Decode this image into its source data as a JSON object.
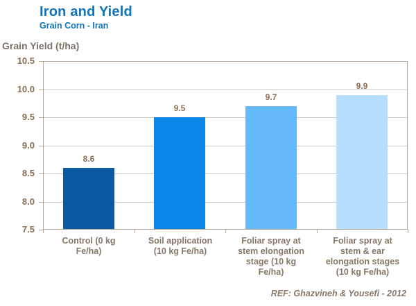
{
  "header": {
    "title": "Iron and Yield",
    "subtitle": "Grain Corn - Iran"
  },
  "footer": {
    "reference": "REF: Ghazvineh & Yousefi - 2012"
  },
  "colors": {
    "title_blue": "#1173BA",
    "axis_border": "#B3A79B",
    "gridline": "#CDC8C2",
    "y_label_brown": "#8B6E52",
    "x_label_gray_brown": "#867868",
    "axis_title_gray": "#7A7265",
    "reference_text": "#877769"
  },
  "chart_data": {
    "type": "bar",
    "title": "Iron and Yield",
    "subtitle": "Grain Corn - Iran",
    "ylabel": "Grain Yield (t/ha)",
    "xlabel": "",
    "ylim": [
      7.5,
      10.5
    ],
    "ytick_step": 0.5,
    "ytick_labels": [
      "10.5",
      "10.0",
      "9.5",
      "9.0",
      "8.5",
      "8.0",
      "7.5"
    ],
    "grid": true,
    "legend": false,
    "categories": [
      "Control (0 kg Fe/ha)",
      "Soil application (10 kg Fe/ha)",
      "Foliar spray at stem elongation stage (10 kg Fe/ha)",
      "Foliar spray at stem & ear elongation stages (10 kg Fe/ha)"
    ],
    "categories_wrapped": [
      "Control (0 kg\nFe/ha)",
      "Soil application\n(10 kg Fe/ha)",
      "Foliar spray at\nstem elongation\nstage (10 kg\nFe/ha)",
      "Foliar spray at\nstem & ear\nelongation stages\n(10 kg Fe/ha)"
    ],
    "values": [
      8.6,
      9.5,
      9.7,
      9.9
    ],
    "value_labels": [
      "8.6",
      "9.5",
      "9.7",
      "9.9"
    ],
    "bar_colors": [
      "#0C59A2",
      "#0B85E6",
      "#64B9FB",
      "#B7DEFC"
    ]
  }
}
